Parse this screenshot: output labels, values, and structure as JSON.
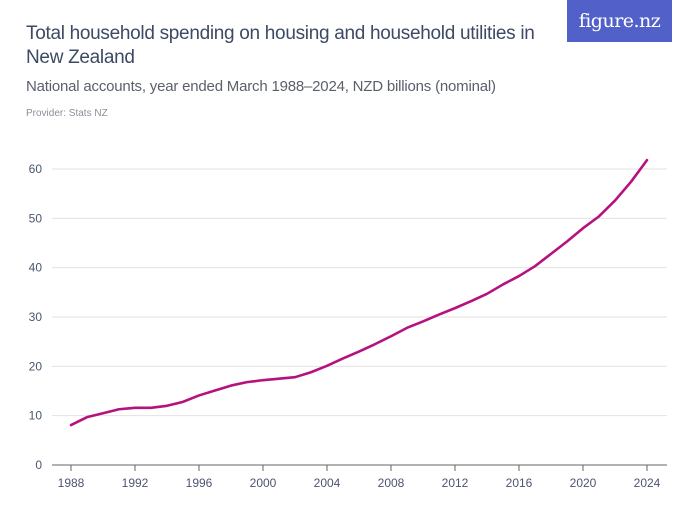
{
  "header": {
    "title": "Total household spending on housing and household utilities in New Zealand",
    "subtitle": "National accounts, year ended March 1988–2024, NZD billions (nominal)",
    "provider": "Provider: Stats NZ",
    "logo": "figure.nz",
    "logo_color": "#5161c9"
  },
  "chart_data": {
    "type": "line",
    "title": "Total household spending on housing and household utilities in New Zealand",
    "xlabel": "",
    "ylabel": "",
    "xlim": [
      1988,
      2024
    ],
    "ylim": [
      0,
      60
    ],
    "grid": true,
    "line_color": "#b5117f",
    "x_ticks": [
      1988,
      1992,
      1996,
      2000,
      2004,
      2008,
      2012,
      2016,
      2020,
      2024
    ],
    "y_ticks": [
      0,
      10,
      20,
      30,
      40,
      50,
      60
    ],
    "x": [
      1988,
      1989,
      1990,
      1991,
      1992,
      1993,
      1994,
      1995,
      1996,
      1997,
      1998,
      1999,
      2000,
      2001,
      2002,
      2003,
      2004,
      2005,
      2006,
      2007,
      2008,
      2009,
      2010,
      2011,
      2012,
      2013,
      2014,
      2015,
      2016,
      2017,
      2018,
      2019,
      2020,
      2021,
      2022,
      2023,
      2024
    ],
    "values": [
      8.1,
      9.7,
      10.5,
      11.3,
      11.6,
      11.6,
      12.0,
      12.8,
      14.1,
      15.1,
      16.1,
      16.8,
      17.2,
      17.5,
      17.8,
      18.8,
      20.1,
      21.6,
      23.0,
      24.5,
      26.1,
      27.8,
      29.1,
      30.5,
      31.8,
      33.2,
      34.7,
      36.6,
      38.3,
      40.3,
      42.8,
      45.3,
      48.0,
      50.4,
      53.6,
      57.4,
      61.8
    ]
  }
}
